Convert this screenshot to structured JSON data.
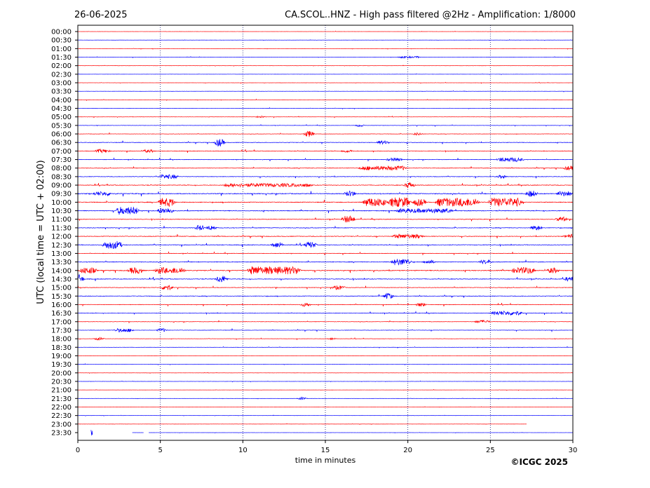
{
  "header": {
    "date": "26-06-2025",
    "station_title": "CA.SCOL..HNZ - High pass filtered @2Hz - Amplification: 1/8000"
  },
  "footer": {
    "copyright": "©ICGC 2025"
  },
  "chart_data": {
    "type": "line",
    "title": "CA.SCOL..HNZ - High pass filtered @2Hz - Amplification: 1/8000",
    "xlabel": "time in minutes",
    "ylabel": "UTC (local time = UTC + 02:00)",
    "xlim": [
      0,
      30
    ],
    "x_ticks": [
      "0",
      "5",
      "10",
      "15",
      "20",
      "25",
      "30"
    ],
    "grid": "vertical dotted at every 5 minutes",
    "colors": [
      "#ff0000",
      "#0000ff"
    ],
    "traces": [
      {
        "label": "00:00",
        "level": 0.5,
        "end_minute": 30,
        "events": []
      },
      {
        "label": "00:30",
        "level": 0.5,
        "end_minute": 30,
        "events": []
      },
      {
        "label": "01:00",
        "level": 0.6,
        "end_minute": 30,
        "events": []
      },
      {
        "label": "01:30",
        "level": 0.6,
        "end_minute": 30,
        "events": [
          {
            "t": 20.1,
            "amp": 1.2,
            "dur": 1.0
          }
        ]
      },
      {
        "label": "02:00",
        "level": 0.5,
        "end_minute": 30,
        "events": []
      },
      {
        "label": "02:30",
        "level": 0.5,
        "end_minute": 30,
        "events": []
      },
      {
        "label": "03:00",
        "level": 0.6,
        "end_minute": 30,
        "events": []
      },
      {
        "label": "03:30",
        "level": 0.6,
        "end_minute": 30,
        "events": []
      },
      {
        "label": "04:00",
        "level": 0.7,
        "end_minute": 30,
        "events": []
      },
      {
        "label": "04:30",
        "level": 0.7,
        "end_minute": 30,
        "events": []
      },
      {
        "label": "05:00",
        "level": 0.8,
        "end_minute": 30,
        "events": [
          {
            "t": 11.1,
            "amp": 1.5,
            "dur": 0.2
          }
        ]
      },
      {
        "label": "05:30",
        "level": 0.9,
        "end_minute": 30,
        "events": [
          {
            "t": 17.1,
            "amp": 2.0,
            "dur": 0.1
          }
        ]
      },
      {
        "label": "06:00",
        "level": 1.2,
        "end_minute": 30,
        "events": [
          {
            "t": 14.0,
            "amp": 4.5,
            "dur": 0.2
          },
          {
            "t": 20.6,
            "amp": 2.0,
            "dur": 0.2
          }
        ]
      },
      {
        "label": "06:30",
        "level": 1.8,
        "end_minute": 30,
        "events": [
          {
            "t": 8.6,
            "amp": 5.5,
            "dur": 0.2
          },
          {
            "t": 18.5,
            "amp": 2.5,
            "dur": 0.4
          }
        ]
      },
      {
        "label": "07:00",
        "level": 1.8,
        "end_minute": 30,
        "events": [
          {
            "t": 1.5,
            "amp": 2.5,
            "dur": 0.5
          },
          {
            "t": 4.3,
            "amp": 2.0,
            "dur": 0.4
          },
          {
            "t": 16.3,
            "amp": 2.0,
            "dur": 0.3
          }
        ]
      },
      {
        "label": "07:30",
        "level": 1.6,
        "end_minute": 30,
        "events": [
          {
            "t": 19.2,
            "amp": 2.2,
            "dur": 0.6
          },
          {
            "t": 26.2,
            "amp": 3.0,
            "dur": 1.2
          }
        ]
      },
      {
        "label": "08:00",
        "level": 1.8,
        "end_minute": 30,
        "events": [
          {
            "t": 18.5,
            "amp": 3.0,
            "dur": 2.5
          },
          {
            "t": 29.8,
            "amp": 3.0,
            "dur": 0.3
          }
        ]
      },
      {
        "label": "08:30",
        "level": 1.8,
        "end_minute": 30,
        "events": [
          {
            "t": 5.5,
            "amp": 3.0,
            "dur": 0.8
          },
          {
            "t": 25.7,
            "amp": 2.5,
            "dur": 0.2
          }
        ]
      },
      {
        "label": "09:00",
        "level": 2.2,
        "end_minute": 30,
        "events": [
          {
            "t": 11.5,
            "amp": 2.5,
            "dur": 5.0
          },
          {
            "t": 20.1,
            "amp": 4.5,
            "dur": 0.2
          }
        ]
      },
      {
        "label": "09:30",
        "level": 2.8,
        "end_minute": 30,
        "events": [
          {
            "t": 1.5,
            "amp": 3.0,
            "dur": 0.8
          },
          {
            "t": 16.5,
            "amp": 4.0,
            "dur": 0.3
          },
          {
            "t": 27.5,
            "amp": 4.5,
            "dur": 0.3
          },
          {
            "t": 29.5,
            "amp": 3.5,
            "dur": 0.6
          }
        ]
      },
      {
        "label": "10:00",
        "level": 2.5,
        "end_minute": 30,
        "events": [
          {
            "t": 5.4,
            "amp": 6.0,
            "dur": 0.6
          },
          {
            "t": 18.0,
            "amp": 6.0,
            "dur": 1.0
          },
          {
            "t": 19.5,
            "amp": 7.0,
            "dur": 0.9
          },
          {
            "t": 20.7,
            "amp": 5.0,
            "dur": 0.4
          },
          {
            "t": 23.0,
            "amp": 6.0,
            "dur": 2.2
          },
          {
            "t": 25.9,
            "amp": 6.0,
            "dur": 1.6
          }
        ]
      },
      {
        "label": "10:30",
        "level": 2.5,
        "end_minute": 30,
        "events": [
          {
            "t": 3.0,
            "amp": 5.5,
            "dur": 1.0
          },
          {
            "t": 5.3,
            "amp": 4.0,
            "dur": 0.6
          },
          {
            "t": 21.0,
            "amp": 3.0,
            "dur": 3.0
          }
        ]
      },
      {
        "label": "11:00",
        "level": 2.0,
        "end_minute": 30,
        "events": [
          {
            "t": 16.4,
            "amp": 5.0,
            "dur": 0.4
          },
          {
            "t": 29.3,
            "amp": 3.5,
            "dur": 0.3
          }
        ]
      },
      {
        "label": "11:30",
        "level": 2.0,
        "end_minute": 30,
        "events": [
          {
            "t": 7.4,
            "amp": 4.0,
            "dur": 0.2
          },
          {
            "t": 8.1,
            "amp": 3.5,
            "dur": 0.2
          },
          {
            "t": 27.8,
            "amp": 3.5,
            "dur": 0.3
          }
        ]
      },
      {
        "label": "12:00",
        "level": 2.2,
        "end_minute": 30,
        "events": [
          {
            "t": 20.0,
            "amp": 3.0,
            "dur": 1.5
          },
          {
            "t": 29.8,
            "amp": 3.0,
            "dur": 0.3
          }
        ]
      },
      {
        "label": "12:30",
        "level": 2.2,
        "end_minute": 30,
        "events": [
          {
            "t": 2.1,
            "amp": 5.5,
            "dur": 0.8
          },
          {
            "t": 12.1,
            "amp": 4.0,
            "dur": 0.3
          },
          {
            "t": 14.1,
            "amp": 4.5,
            "dur": 0.3
          }
        ]
      },
      {
        "label": "13:00",
        "level": 1.6,
        "end_minute": 30,
        "events": []
      },
      {
        "label": "13:30",
        "level": 2.2,
        "end_minute": 30,
        "events": [
          {
            "t": 19.6,
            "amp": 4.5,
            "dur": 0.8
          },
          {
            "t": 21.3,
            "amp": 3.0,
            "dur": 0.3
          },
          {
            "t": 24.7,
            "amp": 3.0,
            "dur": 0.4
          }
        ]
      },
      {
        "label": "14:00",
        "level": 2.8,
        "end_minute": 30,
        "events": [
          {
            "t": 0.6,
            "amp": 4.5,
            "dur": 0.6
          },
          {
            "t": 3.5,
            "amp": 4.5,
            "dur": 0.5
          },
          {
            "t": 5.1,
            "amp": 4.5,
            "dur": 0.5
          },
          {
            "t": 6.0,
            "amp": 4.5,
            "dur": 0.6
          },
          {
            "t": 10.8,
            "amp": 6.0,
            "dur": 0.6
          },
          {
            "t": 12.3,
            "amp": 5.5,
            "dur": 2.0
          },
          {
            "t": 27.0,
            "amp": 4.5,
            "dur": 1.0
          },
          {
            "t": 28.8,
            "amp": 4.0,
            "dur": 0.3
          }
        ]
      },
      {
        "label": "14:30",
        "level": 2.2,
        "end_minute": 30,
        "events": [
          {
            "t": 0.05,
            "amp": 6.5,
            "dur": 0.2
          },
          {
            "t": 8.7,
            "amp": 5.0,
            "dur": 0.3
          },
          {
            "t": 29.8,
            "amp": 3.0,
            "dur": 0.3
          }
        ]
      },
      {
        "label": "15:00",
        "level": 1.8,
        "end_minute": 30,
        "events": [
          {
            "t": 5.4,
            "amp": 4.0,
            "dur": 0.3
          },
          {
            "t": 15.8,
            "amp": 3.0,
            "dur": 0.4
          }
        ]
      },
      {
        "label": "15:30",
        "level": 1.9,
        "end_minute": 30,
        "events": [
          {
            "t": 18.8,
            "amp": 4.5,
            "dur": 0.2
          }
        ]
      },
      {
        "label": "16:00",
        "level": 1.8,
        "end_minute": 30,
        "events": [
          {
            "t": 13.8,
            "amp": 3.0,
            "dur": 0.2
          },
          {
            "t": 20.8,
            "amp": 3.0,
            "dur": 0.2
          }
        ]
      },
      {
        "label": "16:30",
        "level": 1.8,
        "end_minute": 30,
        "events": [
          {
            "t": 26.0,
            "amp": 3.0,
            "dur": 1.5
          }
        ]
      },
      {
        "label": "17:00",
        "level": 1.4,
        "end_minute": 30,
        "events": [
          {
            "t": 24.5,
            "amp": 2.0,
            "dur": 0.6
          }
        ]
      },
      {
        "label": "17:30",
        "level": 1.4,
        "end_minute": 30,
        "events": [
          {
            "t": 2.8,
            "amp": 2.5,
            "dur": 0.8
          },
          {
            "t": 5.1,
            "amp": 2.5,
            "dur": 0.2
          }
        ]
      },
      {
        "label": "18:00",
        "level": 0.9,
        "end_minute": 30,
        "events": [
          {
            "t": 1.3,
            "amp": 2.0,
            "dur": 0.2
          },
          {
            "t": 15.4,
            "amp": 1.5,
            "dur": 0.1
          }
        ]
      },
      {
        "label": "18:30",
        "level": 0.7,
        "end_minute": 30,
        "events": []
      },
      {
        "label": "19:00",
        "level": 0.6,
        "end_minute": 30,
        "events": []
      },
      {
        "label": "19:30",
        "level": 0.6,
        "end_minute": 30,
        "events": []
      },
      {
        "label": "20:00",
        "level": 0.5,
        "end_minute": 30,
        "events": []
      },
      {
        "label": "20:30",
        "level": 0.5,
        "end_minute": 30,
        "events": []
      },
      {
        "label": "21:00",
        "level": 0.5,
        "end_minute": 30,
        "events": []
      },
      {
        "label": "21:30",
        "level": 0.5,
        "end_minute": 30,
        "events": [
          {
            "t": 13.6,
            "amp": 2.0,
            "dur": 0.1
          }
        ]
      },
      {
        "label": "22:00",
        "level": 0.5,
        "end_minute": 30,
        "events": []
      },
      {
        "label": "22:30",
        "level": 0.5,
        "end_minute": 30,
        "events": []
      },
      {
        "label": "23:00",
        "level": 0.5,
        "end_minute": 27.2,
        "events": []
      },
      {
        "label": "23:30",
        "level": 0.4,
        "end_minute": 30,
        "events": [
          {
            "t": 0.8,
            "amp": 4.5,
            "dur": 0.1
          }
        ],
        "segments": [
          [
            0.8,
            0.9
          ],
          [
            3.3,
            4.0
          ],
          [
            4.3,
            30.0
          ]
        ]
      }
    ]
  }
}
